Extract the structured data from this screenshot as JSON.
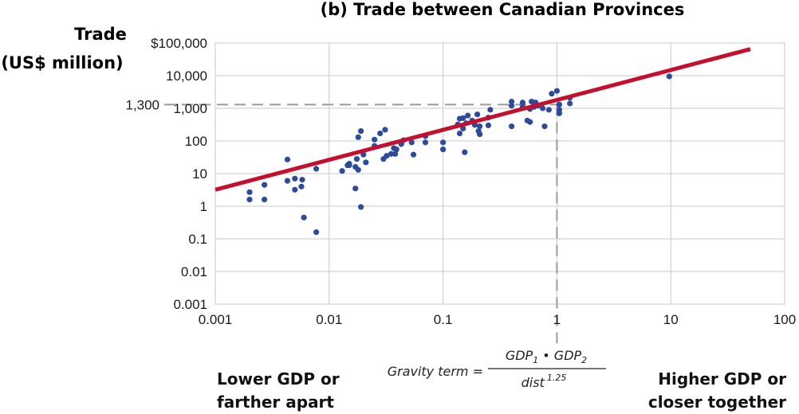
{
  "chart_data": {
    "type": "scatter",
    "title": "(b) Trade between Canadian Provinces",
    "ylabel": [
      "Trade",
      "(US$ million)"
    ],
    "xscale": "log",
    "yscale": "log",
    "xlim": [
      0.001,
      100
    ],
    "ylim": [
      0.001,
      100000
    ],
    "xticks": [
      {
        "value": 0.001,
        "label": "0.001"
      },
      {
        "value": 0.01,
        "label": "0.01"
      },
      {
        "value": 0.1,
        "label": "0.1"
      },
      {
        "value": 1,
        "label": "1"
      },
      {
        "value": 10,
        "label": "10"
      },
      {
        "value": 100,
        "label": "100"
      }
    ],
    "yticks": [
      {
        "value": 0.001,
        "label": "0.001"
      },
      {
        "value": 0.01,
        "label": "0.01"
      },
      {
        "value": 0.1,
        "label": "0.1"
      },
      {
        "value": 1,
        "label": "1"
      },
      {
        "value": 10,
        "label": "10"
      },
      {
        "value": 100,
        "label": "100"
      },
      {
        "value": 1000,
        "label": "1,000"
      },
      {
        "value": 10000,
        "label": "10,000"
      },
      {
        "value": 100000,
        "label": "$100,000"
      }
    ],
    "grid": true,
    "fit_line": {
      "from": [
        0.001,
        3.2
      ],
      "to": [
        50,
        65000
      ],
      "color": "#c4102e"
    },
    "reference": {
      "x": 1,
      "y": 1300,
      "label": "1,300"
    },
    "formula": {
      "lhs": "Gravity term =",
      "numerator": [
        "GDP",
        "1",
        " • GDP",
        "2"
      ],
      "denominator": [
        "dist",
        "1.25"
      ]
    },
    "corner_labels": {
      "left": [
        "Lower GDP or",
        "farther apart"
      ],
      "right": [
        "Higher GDP or",
        "closer together"
      ]
    },
    "point_color": "#2d4b9a",
    "points": [
      [
        0.002,
        2.7
      ],
      [
        0.002,
        1.6
      ],
      [
        0.0027,
        4.5
      ],
      [
        0.0027,
        1.6
      ],
      [
        0.0043,
        27
      ],
      [
        0.0043,
        6
      ],
      [
        0.005,
        7
      ],
      [
        0.005,
        3.2
      ],
      [
        0.0057,
        4
      ],
      [
        0.0058,
        6.5
      ],
      [
        0.006,
        0.45
      ],
      [
        0.0077,
        0.16
      ],
      [
        0.0077,
        14
      ],
      [
        0.013,
        12
      ],
      [
        0.0145,
        18
      ],
      [
        0.015,
        18
      ],
      [
        0.015,
        20
      ],
      [
        0.017,
        16
      ],
      [
        0.017,
        3.5
      ],
      [
        0.0175,
        28
      ],
      [
        0.018,
        13
      ],
      [
        0.018,
        130
      ],
      [
        0.019,
        200
      ],
      [
        0.019,
        0.95
      ],
      [
        0.02,
        38
      ],
      [
        0.021,
        22
      ],
      [
        0.025,
        70
      ],
      [
        0.025,
        110
      ],
      [
        0.028,
        170
      ],
      [
        0.03,
        28
      ],
      [
        0.031,
        220
      ],
      [
        0.032,
        35
      ],
      [
        0.035,
        40
      ],
      [
        0.037,
        60
      ],
      [
        0.038,
        40
      ],
      [
        0.039,
        55
      ],
      [
        0.043,
        80
      ],
      [
        0.045,
        105
      ],
      [
        0.053,
        90
      ],
      [
        0.055,
        38
      ],
      [
        0.07,
        140
      ],
      [
        0.07,
        90
      ],
      [
        0.1,
        55
      ],
      [
        0.1,
        90
      ],
      [
        0.135,
        320
      ],
      [
        0.14,
        480
      ],
      [
        0.14,
        170
      ],
      [
        0.15,
        500
      ],
      [
        0.15,
        240
      ],
      [
        0.155,
        45
      ],
      [
        0.16,
        350
      ],
      [
        0.165,
        600
      ],
      [
        0.18,
        420
      ],
      [
        0.19,
        310
      ],
      [
        0.2,
        650
      ],
      [
        0.205,
        200
      ],
      [
        0.21,
        160
      ],
      [
        0.21,
        280
      ],
      [
        0.25,
        300
      ],
      [
        0.25,
        520
      ],
      [
        0.26,
        900
      ],
      [
        0.4,
        1600
      ],
      [
        0.4,
        1200
      ],
      [
        0.4,
        280
      ],
      [
        0.5,
        1500
      ],
      [
        0.5,
        1100
      ],
      [
        0.55,
        420
      ],
      [
        0.58,
        380
      ],
      [
        0.58,
        950
      ],
      [
        0.6,
        1600
      ],
      [
        0.63,
        1100
      ],
      [
        0.65,
        1500
      ],
      [
        0.68,
        1200
      ],
      [
        0.75,
        1000
      ],
      [
        0.78,
        280
      ],
      [
        0.85,
        900
      ],
      [
        0.9,
        2800
      ],
      [
        1.0,
        3400
      ],
      [
        1.05,
        1300
      ],
      [
        1.05,
        700
      ],
      [
        1.05,
        900
      ],
      [
        1.3,
        2100
      ],
      [
        1.3,
        1400
      ],
      [
        9.7,
        9500
      ]
    ]
  }
}
